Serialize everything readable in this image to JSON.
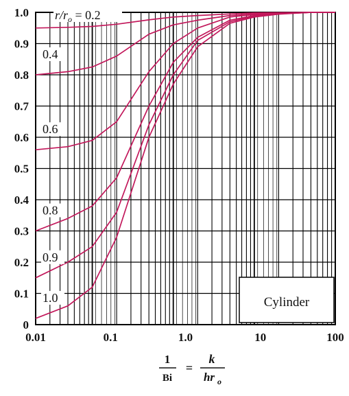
{
  "chart_data": {
    "type": "line",
    "x_scale": "log",
    "xlim": [
      0.02,
      100
    ],
    "ylim": [
      0,
      1.0
    ],
    "grid": true,
    "x_ticks": [
      "0.01",
      "0.1",
      "1.0",
      "10",
      "100"
    ],
    "y_ticks": [
      "0",
      "0.1",
      "0.2",
      "0.3",
      "0.4",
      "0.5",
      "0.6",
      "0.7",
      "0.8",
      "0.9",
      "1.0"
    ],
    "xlabel": {
      "numerator_left": "1",
      "denominator_left": "Bi",
      "equals": "=",
      "numerator_right": "k",
      "denominator_right": "hr",
      "denominator_right_subscript": "o"
    },
    "param_label": "r/r",
    "param_label_subscript": "o",
    "param_equals": " = ",
    "annotation": "Cylinder",
    "series_color": "#c2185b",
    "x": [
      0.02,
      0.05,
      0.1,
      0.2,
      0.5,
      1,
      2,
      5,
      10,
      20,
      50,
      100
    ],
    "series": [
      {
        "label": "0.2",
        "values": [
          0.95,
          0.952,
          0.955,
          0.962,
          0.976,
          0.985,
          0.99,
          0.995,
          0.998,
          0.999,
          1.0,
          1.0
        ]
      },
      {
        "label": "0.4",
        "values": [
          0.8,
          0.81,
          0.825,
          0.86,
          0.93,
          0.96,
          0.975,
          0.99,
          0.995,
          0.998,
          1.0,
          1.0
        ]
      },
      {
        "label": "0.6",
        "values": [
          0.56,
          0.57,
          0.59,
          0.65,
          0.81,
          0.9,
          0.95,
          0.985,
          0.993,
          0.997,
          1.0,
          1.0
        ]
      },
      {
        "label": "0.8",
        "values": [
          0.3,
          0.34,
          0.38,
          0.47,
          0.7,
          0.84,
          0.92,
          0.975,
          0.99,
          0.996,
          1.0,
          1.0
        ]
      },
      {
        "label": "0.9",
        "values": [
          0.15,
          0.2,
          0.25,
          0.36,
          0.64,
          0.8,
          0.91,
          0.97,
          0.988,
          0.995,
          1.0,
          1.0
        ]
      },
      {
        "label": "1.0",
        "values": [
          0.02,
          0.06,
          0.12,
          0.28,
          0.6,
          0.77,
          0.89,
          0.965,
          0.985,
          0.994,
          1.0,
          1.0
        ]
      }
    ]
  }
}
